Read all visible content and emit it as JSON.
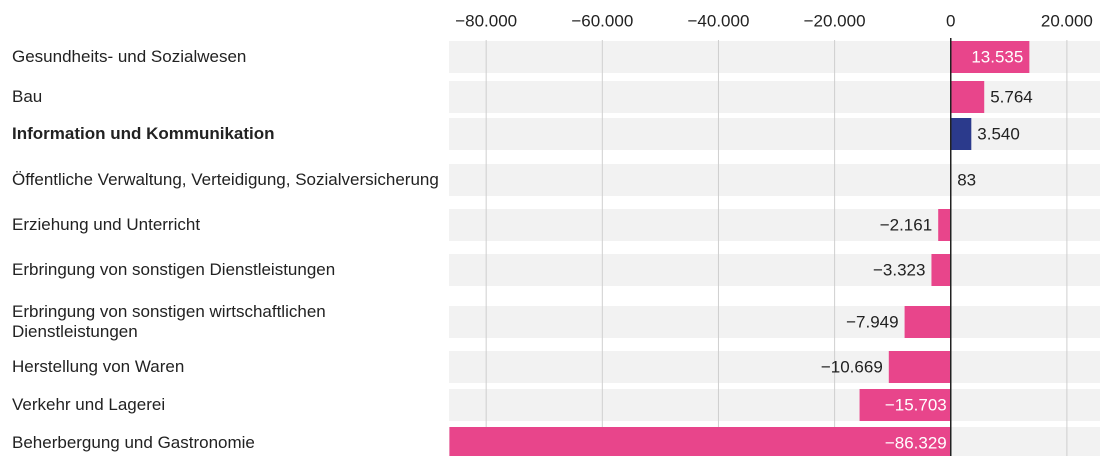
{
  "chart_data": {
    "type": "bar",
    "orientation": "horizontal",
    "categories": [
      "Gesundheits- und Sozialwesen",
      "Bau",
      "Information und Kommunikation",
      "Öffentliche Verwaltung, Verteidigung, Sozialversicherung",
      "Erziehung und Unterricht",
      "Erbringung von sonstigen Dienstleistungen",
      "Erbringung von sonstigen wirtschaftlichen Dienstleistungen",
      "Herstellung von Waren",
      "Verkehr und Lagerei",
      "Beherbergung und Gastronomie"
    ],
    "values": [
      13535,
      5764,
      3540,
      83,
      -2161,
      -3323,
      -7949,
      -10669,
      -15703,
      -86329
    ],
    "value_labels": [
      "13.535",
      "5.764",
      "3.540",
      "83",
      "−2.161",
      "−3.323",
      "−7.949",
      "−10.669",
      "−15.703",
      "−86.329"
    ],
    "color": "#e8458b",
    "highlight": "Information und Kommunikation",
    "highlight_color": "#2b3a8c",
    "xlim": [
      -86400,
      25700
    ],
    "xticks": [
      {
        "value": -80000,
        "label": "−80.000"
      },
      {
        "value": -60000,
        "label": "−60.000"
      },
      {
        "value": -40000,
        "label": "−40.000"
      },
      {
        "value": -20000,
        "label": "−20.000"
      },
      0,
      {
        "value": 20000,
        "label": "20.000"
      }
    ],
    "grid": true
  }
}
